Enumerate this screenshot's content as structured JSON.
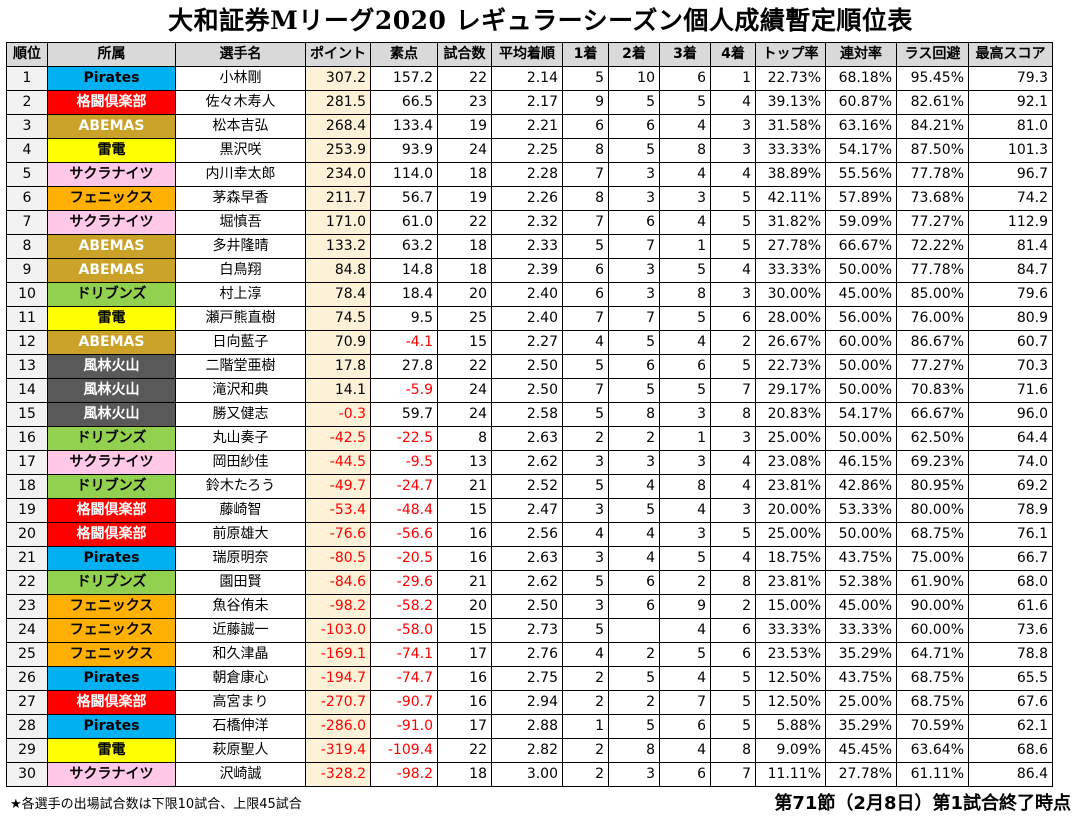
{
  "title": "大和証券Mリーグ2020 レギュラーシーズン個人成績暫定順位表",
  "columns": [
    "順位",
    "所属",
    "選手名",
    "ポイント",
    "素点",
    "試合数",
    "平均着順",
    "1着",
    "2着",
    "3着",
    "4着",
    "トップ率",
    "連対率",
    "ラス回避",
    "最高スコア"
  ],
  "team_colors": {
    "Pirates": {
      "bg": "#00b0f0",
      "fg": "#000000"
    },
    "格闘倶楽部": {
      "bg": "#ff0000",
      "fg": "#ffffff"
    },
    "ABEMAS": {
      "bg": "#c9a227",
      "fg": "#ffffff"
    },
    "雷電": {
      "bg": "#ffff00",
      "fg": "#000000"
    },
    "サクラナイツ": {
      "bg": "#ffc8e6",
      "fg": "#000000"
    },
    "フェニックス": {
      "bg": "#ffb000",
      "fg": "#000000"
    },
    "ドリブンズ": {
      "bg": "#92d050",
      "fg": "#000000"
    },
    "風林火山": {
      "bg": "#595959",
      "fg": "#ffffff"
    }
  },
  "rows": [
    [
      "1",
      "Pirates",
      "小林剛",
      "307.2",
      "157.2",
      "22",
      "2.14",
      "5",
      "10",
      "6",
      "1",
      "22.73%",
      "68.18%",
      "95.45%",
      "79.3"
    ],
    [
      "2",
      "格闘倶楽部",
      "佐々木寿人",
      "281.5",
      "66.5",
      "23",
      "2.17",
      "9",
      "5",
      "5",
      "4",
      "39.13%",
      "60.87%",
      "82.61%",
      "92.1"
    ],
    [
      "3",
      "ABEMAS",
      "松本吉弘",
      "268.4",
      "133.4",
      "19",
      "2.21",
      "6",
      "6",
      "4",
      "3",
      "31.58%",
      "63.16%",
      "84.21%",
      "81.0"
    ],
    [
      "4",
      "雷電",
      "黒沢咲",
      "253.9",
      "93.9",
      "24",
      "2.25",
      "8",
      "5",
      "8",
      "3",
      "33.33%",
      "54.17%",
      "87.50%",
      "101.3"
    ],
    [
      "5",
      "サクラナイツ",
      "内川幸太郎",
      "234.0",
      "114.0",
      "18",
      "2.28",
      "7",
      "3",
      "4",
      "4",
      "38.89%",
      "55.56%",
      "77.78%",
      "96.7"
    ],
    [
      "6",
      "フェニックス",
      "茅森早香",
      "211.7",
      "56.7",
      "19",
      "2.26",
      "8",
      "3",
      "3",
      "5",
      "42.11%",
      "57.89%",
      "73.68%",
      "74.2"
    ],
    [
      "7",
      "サクラナイツ",
      "堀慎吾",
      "171.0",
      "61.0",
      "22",
      "2.32",
      "7",
      "6",
      "4",
      "5",
      "31.82%",
      "59.09%",
      "77.27%",
      "112.9"
    ],
    [
      "8",
      "ABEMAS",
      "多井隆晴",
      "133.2",
      "63.2",
      "18",
      "2.33",
      "5",
      "7",
      "1",
      "5",
      "27.78%",
      "66.67%",
      "72.22%",
      "81.4"
    ],
    [
      "9",
      "ABEMAS",
      "白鳥翔",
      "84.8",
      "14.8",
      "18",
      "2.39",
      "6",
      "3",
      "5",
      "4",
      "33.33%",
      "50.00%",
      "77.78%",
      "84.7"
    ],
    [
      "10",
      "ドリブンズ",
      "村上淳",
      "78.4",
      "18.4",
      "20",
      "2.40",
      "6",
      "3",
      "8",
      "3",
      "30.00%",
      "45.00%",
      "85.00%",
      "79.6"
    ],
    [
      "11",
      "雷電",
      "瀬戸熊直樹",
      "74.5",
      "9.5",
      "25",
      "2.40",
      "7",
      "7",
      "5",
      "6",
      "28.00%",
      "56.00%",
      "76.00%",
      "80.9"
    ],
    [
      "12",
      "ABEMAS",
      "日向藍子",
      "70.9",
      "-4.1",
      "15",
      "2.27",
      "4",
      "5",
      "4",
      "2",
      "26.67%",
      "60.00%",
      "86.67%",
      "60.7"
    ],
    [
      "13",
      "風林火山",
      "二階堂亜樹",
      "17.8",
      "27.8",
      "22",
      "2.50",
      "5",
      "6",
      "6",
      "5",
      "22.73%",
      "50.00%",
      "77.27%",
      "70.3"
    ],
    [
      "14",
      "風林火山",
      "滝沢和典",
      "14.1",
      "-5.9",
      "24",
      "2.50",
      "7",
      "5",
      "5",
      "7",
      "29.17%",
      "50.00%",
      "70.83%",
      "71.6"
    ],
    [
      "15",
      "風林火山",
      "勝又健志",
      "-0.3",
      "59.7",
      "24",
      "2.58",
      "5",
      "8",
      "3",
      "8",
      "20.83%",
      "54.17%",
      "66.67%",
      "96.0"
    ],
    [
      "16",
      "ドリブンズ",
      "丸山奏子",
      "-42.5",
      "-22.5",
      "8",
      "2.63",
      "2",
      "2",
      "1",
      "3",
      "25.00%",
      "50.00%",
      "62.50%",
      "64.4"
    ],
    [
      "17",
      "サクラナイツ",
      "岡田紗佳",
      "-44.5",
      "-9.5",
      "13",
      "2.62",
      "3",
      "3",
      "3",
      "4",
      "23.08%",
      "46.15%",
      "69.23%",
      "74.0"
    ],
    [
      "18",
      "ドリブンズ",
      "鈴木たろう",
      "-49.7",
      "-24.7",
      "21",
      "2.52",
      "5",
      "4",
      "8",
      "4",
      "23.81%",
      "42.86%",
      "80.95%",
      "69.2"
    ],
    [
      "19",
      "格闘倶楽部",
      "藤崎智",
      "-53.4",
      "-48.4",
      "15",
      "2.47",
      "3",
      "5",
      "4",
      "3",
      "20.00%",
      "53.33%",
      "80.00%",
      "78.9"
    ],
    [
      "20",
      "格闘倶楽部",
      "前原雄大",
      "-76.6",
      "-56.6",
      "16",
      "2.56",
      "4",
      "4",
      "3",
      "5",
      "25.00%",
      "50.00%",
      "68.75%",
      "76.1"
    ],
    [
      "21",
      "Pirates",
      "瑞原明奈",
      "-80.5",
      "-20.5",
      "16",
      "2.63",
      "3",
      "4",
      "5",
      "4",
      "18.75%",
      "43.75%",
      "75.00%",
      "66.7"
    ],
    [
      "22",
      "ドリブンズ",
      "園田賢",
      "-84.6",
      "-29.6",
      "21",
      "2.62",
      "5",
      "6",
      "2",
      "8",
      "23.81%",
      "52.38%",
      "61.90%",
      "68.0"
    ],
    [
      "23",
      "フェニックス",
      "魚谷侑未",
      "-98.2",
      "-58.2",
      "20",
      "2.50",
      "3",
      "6",
      "9",
      "2",
      "15.00%",
      "45.00%",
      "90.00%",
      "61.6"
    ],
    [
      "24",
      "フェニックス",
      "近藤誠一",
      "-103.0",
      "-58.0",
      "15",
      "2.73",
      "5",
      "",
      "4",
      "6",
      "33.33%",
      "33.33%",
      "60.00%",
      "73.6"
    ],
    [
      "25",
      "フェニックス",
      "和久津晶",
      "-169.1",
      "-74.1",
      "17",
      "2.76",
      "4",
      "2",
      "5",
      "6",
      "23.53%",
      "35.29%",
      "64.71%",
      "78.8"
    ],
    [
      "26",
      "Pirates",
      "朝倉康心",
      "-194.7",
      "-74.7",
      "16",
      "2.75",
      "2",
      "5",
      "4",
      "5",
      "12.50%",
      "43.75%",
      "68.75%",
      "65.5"
    ],
    [
      "27",
      "格闘倶楽部",
      "高宮まり",
      "-270.7",
      "-90.7",
      "16",
      "2.94",
      "2",
      "2",
      "7",
      "5",
      "12.50%",
      "25.00%",
      "68.75%",
      "67.6"
    ],
    [
      "28",
      "Pirates",
      "石橋伸洋",
      "-286.0",
      "-91.0",
      "17",
      "2.88",
      "1",
      "5",
      "6",
      "5",
      "5.88%",
      "35.29%",
      "70.59%",
      "62.1"
    ],
    [
      "29",
      "雷電",
      "萩原聖人",
      "-319.4",
      "-109.4",
      "22",
      "2.82",
      "2",
      "8",
      "4",
      "8",
      "9.09%",
      "45.45%",
      "63.64%",
      "68.6"
    ],
    [
      "30",
      "サクラナイツ",
      "沢崎誠",
      "-328.2",
      "-98.2",
      "18",
      "3.00",
      "2",
      "3",
      "6",
      "7",
      "11.11%",
      "27.78%",
      "61.11%",
      "86.4"
    ]
  ],
  "footnote": "★各選手の出場試合数は下限10試合、上限45試合",
  "status": "第71節（2月8日）第1試合終了時点"
}
